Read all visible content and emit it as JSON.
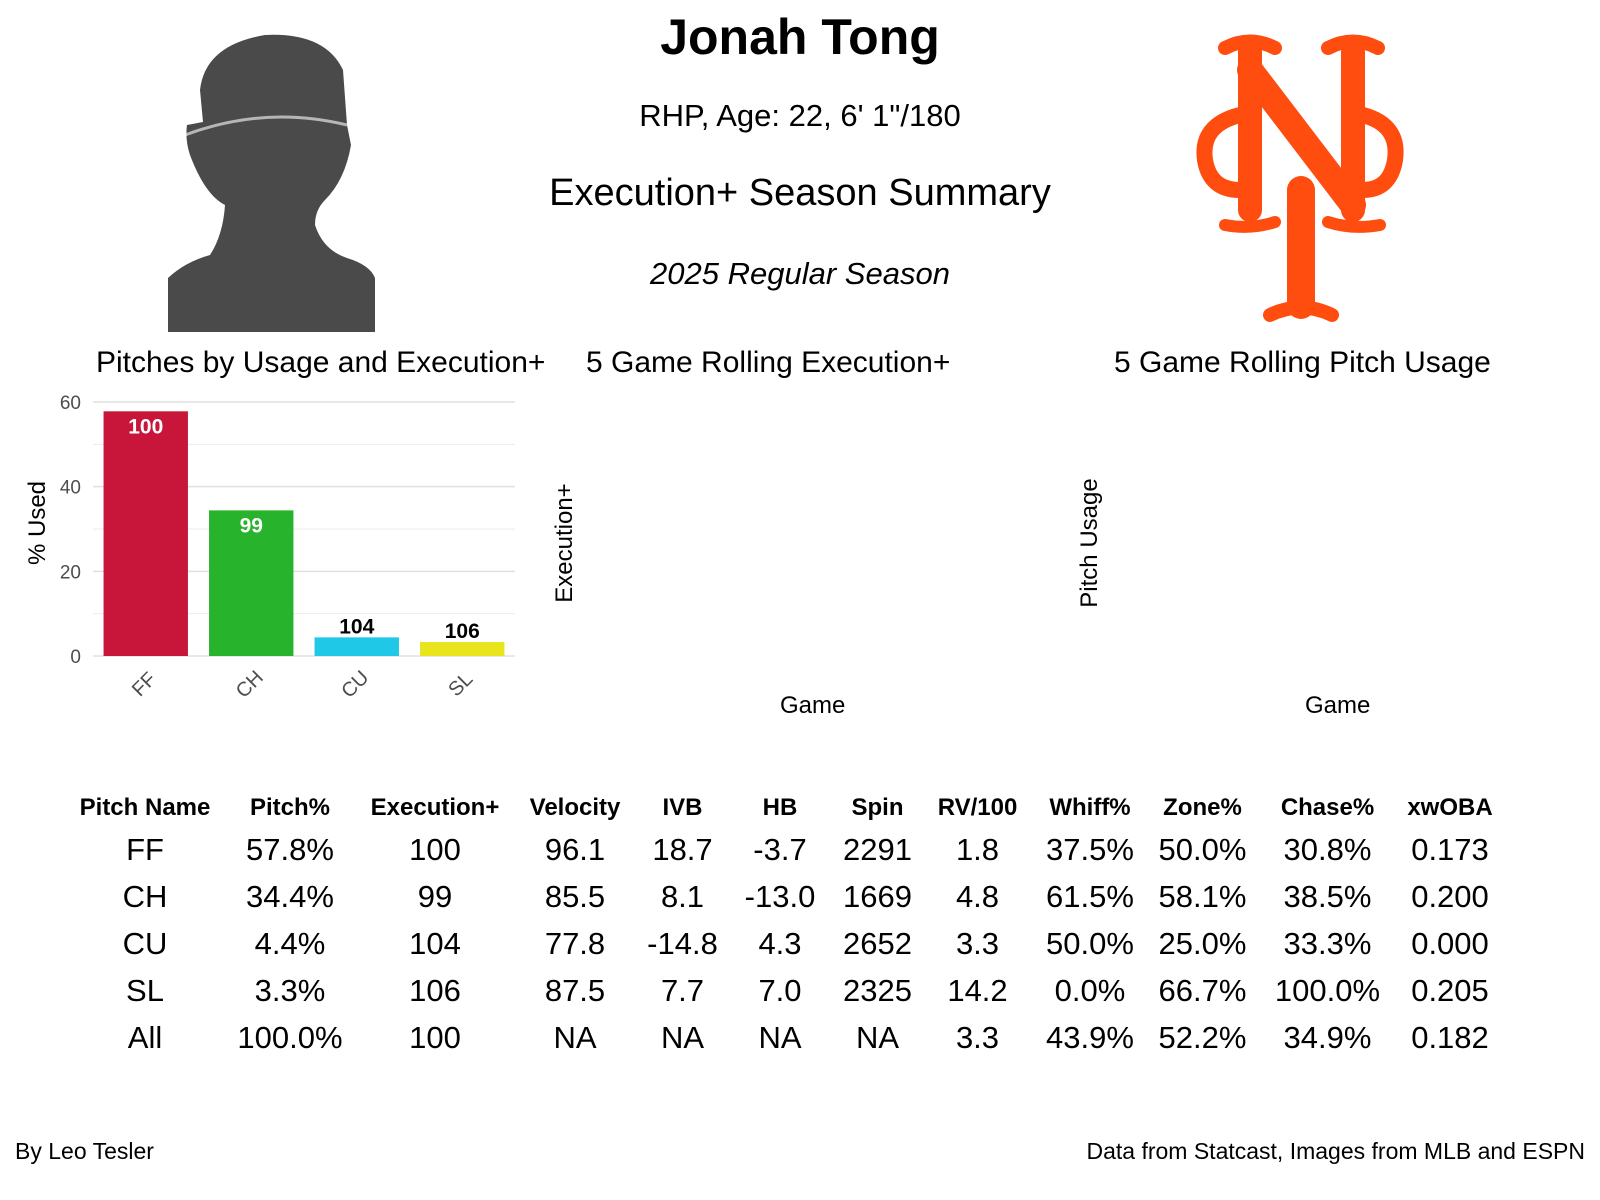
{
  "header": {
    "name": "Jonah Tong",
    "bio": "RHP, Age: 22, 6' 1\"/180",
    "title": "Execution+ Season Summary",
    "season": "2025 Regular Season"
  },
  "colors": {
    "team_logo": "#FF4C0F",
    "silhouette": "#4a4a4a",
    "FF": "#C8163A",
    "CH": "#27B32C",
    "CU": "#1FC8E6",
    "SL": "#E8E51C"
  },
  "panels": {
    "bar_title": "Pitches by Usage and Execution+",
    "rolling_exec_title": "5 Game Rolling Execution+",
    "rolling_usage_title": "5 Game Rolling Pitch Usage",
    "rolling_exec_ylabel": "Execution+",
    "rolling_exec_xlabel": "Game",
    "rolling_usage_ylabel": "Pitch Usage",
    "rolling_usage_xlabel": "Game"
  },
  "chart_data": {
    "type": "bar",
    "categories": [
      "FF",
      "CH",
      "CU",
      "SL"
    ],
    "values": [
      57.8,
      34.4,
      4.4,
      3.3
    ],
    "data_labels": [
      "100",
      "99",
      "104",
      "106"
    ],
    "ylabel": "% Used",
    "xlabel": "",
    "ylim": [
      0,
      60
    ],
    "yticks": [
      0,
      20,
      40,
      60
    ],
    "grid": true
  },
  "table": {
    "headers": [
      "Pitch Name",
      "Pitch%",
      "Execution+",
      "Velocity",
      "IVB",
      "HB",
      "Spin",
      "RV/100",
      "Whiff%",
      "Zone%",
      "Chase%",
      "xwOBA"
    ],
    "rows": [
      [
        "FF",
        "57.8%",
        "100",
        "96.1",
        "18.7",
        "-3.7",
        "2291",
        "1.8",
        "37.5%",
        "50.0%",
        "30.8%",
        "0.173"
      ],
      [
        "CH",
        "34.4%",
        "99",
        "85.5",
        "8.1",
        "-13.0",
        "1669",
        "4.8",
        "61.5%",
        "58.1%",
        "38.5%",
        "0.200"
      ],
      [
        "CU",
        "4.4%",
        "104",
        "77.8",
        "-14.8",
        "4.3",
        "2652",
        "3.3",
        "50.0%",
        "25.0%",
        "33.3%",
        "0.000"
      ],
      [
        "SL",
        "3.3%",
        "106",
        "87.5",
        "7.7",
        "7.0",
        "2325",
        "14.2",
        "0.0%",
        "66.7%",
        "100.0%",
        "0.205"
      ],
      [
        "All",
        "100.0%",
        "100",
        "NA",
        "NA",
        "NA",
        "NA",
        "3.3",
        "43.9%",
        "52.2%",
        "34.9%",
        "0.182"
      ]
    ]
  },
  "footer": {
    "left": "By Leo Tesler",
    "right": "Data from Statcast, Images from MLB and ESPN"
  }
}
